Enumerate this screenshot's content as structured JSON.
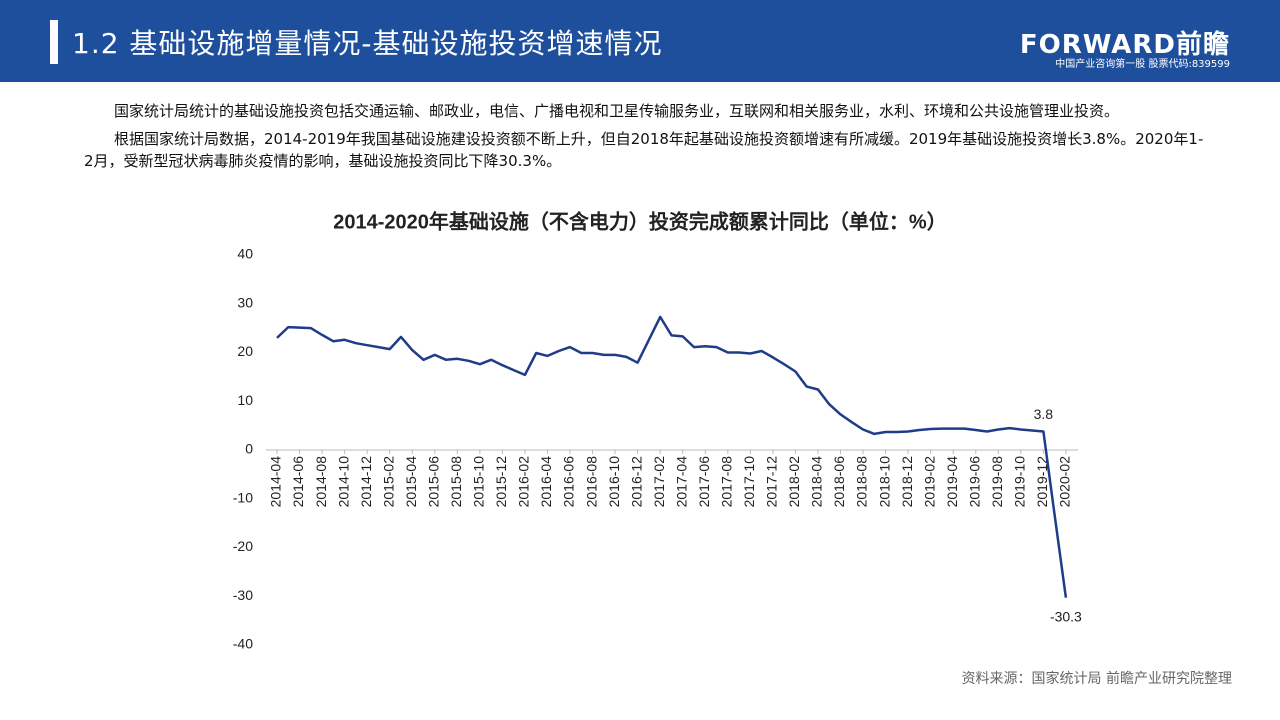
{
  "header": {
    "title": "1.2 基础设施增量情况-基础设施投资增速情况",
    "logo": "FORWARD前瞻",
    "slogan": "中国产业咨询第一股 股票代码:839599"
  },
  "paragraphs": [
    "国家统计局统计的基础设施投资包括交通运输、邮政业，电信、广播电视和卫星传输服务业，互联网和相关服务业，水利、环境和公共设施管理业投资。",
    "根据国家统计局数据，2014-2019年我国基础设施建设投资额不断上升，但自2018年起基础设施投资额增速有所减缓。2019年基础设施投资增长3.8%。2020年1-2月，受新型冠状病毒肺炎疫情的影响，基础设施投资同比下降30.3%。"
  ],
  "source": "资料来源：国家统计局 前瞻产业研究院整理",
  "chart_data": {
    "type": "line",
    "title": "2014-2020年基础设施（不含电力）投资完成额累计同比（单位：%）",
    "categories": [
      "2014-04",
      null,
      "2014-06",
      null,
      "2014-08",
      null,
      "2014-10",
      null,
      "2014-12",
      null,
      "2015-02",
      null,
      "2015-04",
      null,
      "2015-06",
      null,
      "2015-08",
      null,
      "2015-10",
      null,
      "2015-12",
      null,
      "2016-02",
      null,
      "2016-04",
      null,
      "2016-06",
      null,
      "2016-08",
      null,
      "2016-10",
      null,
      "2016-12",
      null,
      "2017-02",
      null,
      "2017-04",
      null,
      "2017-06",
      null,
      "2017-08",
      null,
      "2017-10",
      null,
      "2017-12",
      null,
      "2018-02",
      null,
      "2018-04",
      null,
      "2018-06",
      null,
      "2018-08",
      null,
      "2018-10",
      null,
      "2018-12",
      null,
      "2019-02",
      null,
      "2019-04",
      null,
      "2019-06",
      null,
      "2019-08",
      null,
      "2019-10",
      null,
      "2019-12",
      null,
      "2020-02"
    ],
    "values": [
      23.0,
      25.2,
      25.1,
      25.0,
      23.6,
      22.3,
      22.6,
      21.9,
      21.5,
      21.1,
      20.7,
      23.2,
      20.5,
      18.5,
      19.5,
      18.5,
      18.7,
      18.3,
      17.6,
      18.5,
      17.4,
      16.4,
      15.4,
      19.9,
      19.3,
      20.3,
      21.1,
      19.9,
      19.9,
      19.5,
      19.5,
      19.1,
      17.9,
      22.6,
      27.3,
      23.5,
      23.3,
      21.1,
      21.3,
      21.1,
      20.0,
      20.0,
      19.8,
      20.3,
      19.0,
      17.6,
      16.1,
      13.0,
      12.4,
      9.4,
      7.3,
      5.7,
      4.2,
      3.3,
      3.7,
      3.7,
      3.8,
      4.1,
      4.3,
      4.4,
      4.4,
      4.4,
      4.1,
      3.8,
      4.2,
      4.5,
      4.2,
      4.0,
      3.8,
      -13.3,
      -30.3
    ],
    "value_label_indices": [
      68,
      70
    ],
    "color": "#1f3c88",
    "ylim": [
      -40,
      40
    ],
    "yticks": [
      -40,
      -30,
      -20,
      -10,
      0,
      10,
      20,
      30,
      40
    ],
    "grid": false
  }
}
